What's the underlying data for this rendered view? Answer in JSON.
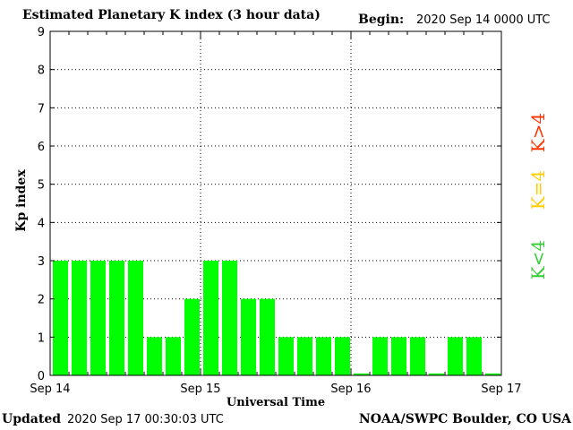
{
  "header": {
    "title": "Estimated Planetary K index (3 hour data)",
    "begin_label": "Begin:",
    "begin_value": "2020 Sep 14 0000 UTC"
  },
  "footer": {
    "updated_label": "Updated",
    "updated_value": "2020 Sep 17 00:30:03 UTC",
    "source": "NOAA/SWPC Boulder, CO USA"
  },
  "chart_data": {
    "type": "bar",
    "title": "Estimated Planetary K index (3 hour data)",
    "xlabel": "Universal Time",
    "ylabel": "Kp index",
    "ylim": [
      0,
      9
    ],
    "yticks": [
      "0",
      "1",
      "2",
      "3",
      "4",
      "5",
      "6",
      "7",
      "8",
      "9"
    ],
    "xticks": [
      "Sep 14",
      "Sep 15",
      "Sep 16",
      "Sep 17"
    ],
    "grid": true,
    "values": [
      3,
      3,
      3,
      3,
      3,
      1,
      1,
      2,
      3,
      3,
      2,
      2,
      1,
      1,
      1,
      1,
      0.05,
      1,
      1,
      1,
      0.05,
      1,
      1,
      0.05
    ],
    "bar_color": "#00ff00",
    "legend": [
      {
        "label": "K<4",
        "color": "#33cc33"
      },
      {
        "label": "K=4",
        "color": "#ffcc00"
      },
      {
        "label": "K>4",
        "color": "#ff3300"
      }
    ]
  }
}
